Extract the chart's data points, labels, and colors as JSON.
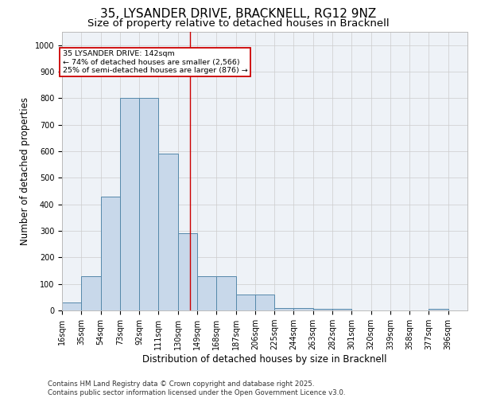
{
  "title_line1": "35, LYSANDER DRIVE, BRACKNELL, RG12 9NZ",
  "title_line2": "Size of property relative to detached houses in Bracknell",
  "xlabel": "Distribution of detached houses by size in Bracknell",
  "ylabel": "Number of detached properties",
  "bin_edges": [
    16,
    35,
    54,
    73,
    92,
    111,
    130,
    149,
    168,
    187,
    206,
    225,
    244,
    263,
    282,
    301,
    320,
    339,
    358,
    377,
    396
  ],
  "bar_heights": [
    30,
    130,
    430,
    800,
    800,
    590,
    290,
    130,
    130,
    60,
    60,
    8,
    8,
    5,
    5,
    0,
    0,
    0,
    0,
    5
  ],
  "bar_color": "#c8d8ea",
  "bar_edge_color": "#5588aa",
  "grid_color": "#cccccc",
  "background_color": "#eef2f7",
  "vline_x": 142,
  "vline_color": "#cc0000",
  "annotation_title": "35 LYSANDER DRIVE: 142sqm",
  "annotation_line1": "← 74% of detached houses are smaller (2,566)",
  "annotation_line2": "25% of semi-detached houses are larger (876) →",
  "annotation_box_color": "#cc0000",
  "ylim": [
    0,
    1050
  ],
  "yticks": [
    0,
    100,
    200,
    300,
    400,
    500,
    600,
    700,
    800,
    900,
    1000
  ],
  "footer_line1": "Contains HM Land Registry data © Crown copyright and database right 2025.",
  "footer_line2": "Contains public sector information licensed under the Open Government Licence v3.0.",
  "title_fontsize": 11,
  "subtitle_fontsize": 9.5,
  "tick_fontsize": 7,
  "label_fontsize": 8.5,
  "footer_fontsize": 6.2
}
